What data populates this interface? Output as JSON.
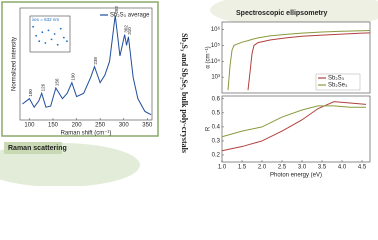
{
  "raman_label": "Raman scattering",
  "ellipsometry_label": "Spectroscopic ellipsometry",
  "side_title": "Sb₂S₃ and Sb₂Se₃ bulk poly-crystals",
  "chart_data": [
    {
      "type": "line",
      "xlabel": "Raman shift (cm⁻¹)",
      "ylabel": "Normalized intensity",
      "x": [
        85,
        100,
        110,
        120,
        126,
        135,
        145,
        156,
        170,
        180,
        190,
        200,
        215,
        230,
        238,
        250,
        260,
        270,
        282,
        292,
        302,
        306,
        310,
        320,
        330,
        345,
        358
      ],
      "series": [
        {
          "name": "Sb₂S₃ average",
          "color": "#1f4e9e",
          "values": [
            0.15,
            0.2,
            0.12,
            0.18,
            0.25,
            0.12,
            0.13,
            0.3,
            0.2,
            0.25,
            0.35,
            0.22,
            0.25,
            0.4,
            0.5,
            0.35,
            0.42,
            0.55,
            0.98,
            0.6,
            0.8,
            0.7,
            0.78,
            0.4,
            0.2,
            0.08,
            0.05
          ]
        }
      ],
      "xlim": [
        80,
        360
      ],
      "xticks": [
        100,
        150,
        200,
        250,
        300,
        350
      ],
      "ylim": [
        0,
        1.05
      ],
      "peaks": [
        100,
        126,
        156,
        190,
        238,
        282,
        302,
        310
      ],
      "legend": "upper right"
    },
    {
      "type": "scatter",
      "annotation": "λex = 632 nm",
      "x": [
        1,
        2,
        3,
        4,
        5,
        6,
        7,
        8,
        9,
        10,
        11,
        12
      ],
      "series": [
        {
          "color": "#1f6fc4",
          "values": [
            0.7,
            0.45,
            0.3,
            0.55,
            0.25,
            0.6,
            0.35,
            0.5,
            0.2,
            0.65,
            0.4,
            0.3
          ]
        }
      ],
      "xlim": [
        0,
        13
      ],
      "ylim": [
        0,
        1
      ]
    },
    {
      "type": "line",
      "ylabel": "α (cm⁻¹)",
      "log_y": true,
      "x": [
        1.1,
        1.15,
        1.2,
        1.25,
        1.3,
        1.5,
        1.65,
        1.7,
        1.75,
        1.8,
        1.9,
        2.2,
        2.6,
        3.0,
        3.5,
        4.0,
        4.5,
        4.7
      ],
      "series": [
        {
          "name": "Sb₂S₃",
          "color": "#b0413e",
          "values": [
            null,
            null,
            null,
            null,
            null,
            null,
            150,
            2000,
            30000,
            100000,
            150000,
            220000,
            300000,
            380000,
            450000,
            520000,
            600000,
            620000
          ]
        },
        {
          "name": "Sb₂Se₃",
          "color": "#8a9a3c",
          "values": [
            null,
            150,
            5000,
            50000,
            100000,
            160000,
            200000,
            220000,
            240000,
            260000,
            300000,
            400000,
            500000,
            600000,
            700000,
            780000,
            850000,
            870000
          ]
        }
      ],
      "xlim": [
        1.0,
        4.7
      ],
      "ylim": [
        100,
        3000000
      ],
      "yticks": [
        {
          "value": 1000,
          "label": "10³"
        },
        {
          "value": 10000,
          "label": "10⁴"
        },
        {
          "value": 100000,
          "label": "10⁵"
        },
        {
          "value": 1000000,
          "label": "10⁶"
        }
      ],
      "legend": "lower right"
    },
    {
      "type": "line",
      "ylabel": "R",
      "xlabel": "Photon energy (eV)",
      "x": [
        1.0,
        1.5,
        2.0,
        2.5,
        3.0,
        3.4,
        3.8,
        4.2,
        4.6
      ],
      "series": [
        {
          "name": "Sb₂S₃",
          "color": "#b0413e",
          "values": [
            0.23,
            0.26,
            0.3,
            0.37,
            0.45,
            0.53,
            0.58,
            0.57,
            0.56
          ]
        },
        {
          "name": "Sb₂Se₃",
          "color": "#8a9a3c",
          "values": [
            0.33,
            0.37,
            0.4,
            0.47,
            0.52,
            0.55,
            0.55,
            0.54,
            0.54
          ]
        }
      ],
      "xlim": [
        1.0,
        4.7
      ],
      "ylim": [
        0.15,
        0.62
      ],
      "xticks": [
        {
          "value": 1.0,
          "label": "1.0"
        },
        {
          "value": 1.5,
          "label": "1.5"
        },
        {
          "value": 2.0,
          "label": "2.0"
        },
        {
          "value": 2.5,
          "label": "2.5"
        },
        {
          "value": 3.0,
          "label": "3.0"
        },
        {
          "value": 3.5,
          "label": "3.5"
        },
        {
          "value": 4.0,
          "label": "4.0"
        },
        {
          "value": 4.5,
          "label": "4.5"
        }
      ],
      "yticks": [
        0.2,
        0.3,
        0.4,
        0.5,
        0.6
      ]
    }
  ]
}
